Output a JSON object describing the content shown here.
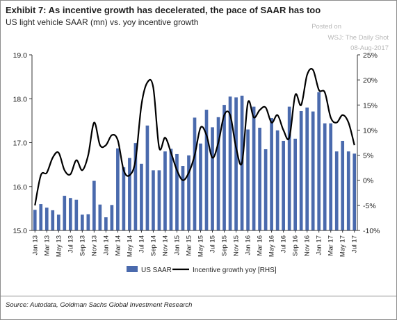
{
  "header": {
    "title": "Exhibit 7: As incentive growth has decelerated, the pace of SAAR has too",
    "subtitle": "US light vehicle SAAR (mn) vs. yoy incentive growth"
  },
  "watermark": {
    "line1": "Posted on",
    "line2": "WSJ: The Daily Shot",
    "line3": "08-Aug-2017"
  },
  "footer": {
    "source": "Source: Autodata, Goldman Sachs Global Investment Research"
  },
  "colors": {
    "bar": "#4a6aad",
    "line": "#000000",
    "axis": "#333333"
  },
  "chart_data": {
    "type": "bar",
    "x": [
      "Jan 13",
      "Feb 13",
      "Mar 13",
      "Apr 13",
      "May 13",
      "Jun 13",
      "Jul 13",
      "Aug 13",
      "Sep 13",
      "Oct 13",
      "Nov 13",
      "Dec 13",
      "Jan 14",
      "Feb 14",
      "Mar 14",
      "Apr 14",
      "May 14",
      "Jun 14",
      "Jul 14",
      "Aug 14",
      "Sep 14",
      "Oct 14",
      "Nov 14",
      "Dec 14",
      "Jan 15",
      "Feb 15",
      "Mar 15",
      "Apr 15",
      "May 15",
      "Jun 15",
      "Jul 15",
      "Aug 15",
      "Sep 15",
      "Oct 15",
      "Nov 15",
      "Dec 15",
      "Jan 16",
      "Feb 16",
      "Mar 16",
      "Apr 16",
      "May 16",
      "Jun 16",
      "Jul 16",
      "Aug 16",
      "Sep 16",
      "Oct 16",
      "Nov 16",
      "Dec 16",
      "Jan 17",
      "Feb 17",
      "Mar 17",
      "Apr 17",
      "May 17",
      "Jun 17",
      "Jul 17"
    ],
    "tick_labels": [
      "Jan 13",
      "Mar 13",
      "May 13",
      "Jul 13",
      "Sep 13",
      "Nov 13",
      "Jan 14",
      "Mar 14",
      "May 14",
      "Jul 14",
      "Sep 14",
      "Nov 14",
      "Jan 15",
      "Mar 15",
      "May 15",
      "Jul 15",
      "Sep 15",
      "Nov 15",
      "Jan 16",
      "Mar 16",
      "May 16",
      "Jul 16",
      "Sep 16",
      "Nov 16",
      "Jan 17",
      "Mar 17",
      "May 17",
      "Jul 17"
    ],
    "series": [
      {
        "name": "US SAAR",
        "type": "bar",
        "axis": "left",
        "values": [
          15.47,
          15.6,
          15.52,
          15.46,
          15.36,
          15.79,
          15.74,
          15.7,
          15.36,
          15.37,
          16.13,
          15.59,
          15.3,
          15.58,
          16.87,
          16.44,
          16.65,
          16.99,
          16.52,
          17.39,
          16.37,
          16.37,
          16.8,
          16.86,
          16.74,
          16.47,
          16.71,
          17.57,
          16.98,
          17.75,
          17.35,
          17.58,
          17.86,
          18.05,
          18.03,
          18.07,
          17.3,
          17.82,
          17.34,
          16.85,
          17.56,
          17.28,
          17.04,
          17.82,
          17.09,
          17.72,
          17.8,
          17.71,
          18.15,
          17.44,
          17.44,
          16.8,
          17.04,
          16.8,
          16.75
        ]
      },
      {
        "name": "Incentive growth yoy [RHS]",
        "type": "line",
        "axis": "right",
        "values": [
          -5.0,
          1.0,
          1.5,
          4.5,
          5.5,
          2.0,
          1.2,
          4.0,
          2.0,
          5.0,
          11.5,
          7.0,
          7.0,
          9.0,
          8.0,
          2.0,
          1.0,
          4.0,
          15.0,
          19.5,
          18.5,
          6.5,
          8.5,
          5.5,
          2.0,
          0.0,
          1.5,
          5.0,
          10.5,
          9.0,
          4.5,
          7.5,
          13.0,
          13.0,
          6.5,
          3.5,
          15.5,
          12.5,
          14.0,
          14.5,
          11.5,
          13.0,
          10.0,
          8.5,
          17.0,
          15.0,
          21.0,
          22.0,
          18.0,
          17.5,
          12.5,
          11.5,
          13.0,
          11.5,
          7.0
        ]
      }
    ],
    "y_left": {
      "ylim": [
        15.0,
        19.0
      ],
      "ticks": [
        "15.0",
        "16.0",
        "17.0",
        "18.0",
        "19.0"
      ]
    },
    "y_right": {
      "ylim": [
        -10,
        25
      ],
      "ticks": [
        "-10%",
        "-5%",
        "0%",
        "5%",
        "10%",
        "15%",
        "20%",
        "25%"
      ]
    },
    "grid": false,
    "legend_position": "bottom"
  }
}
